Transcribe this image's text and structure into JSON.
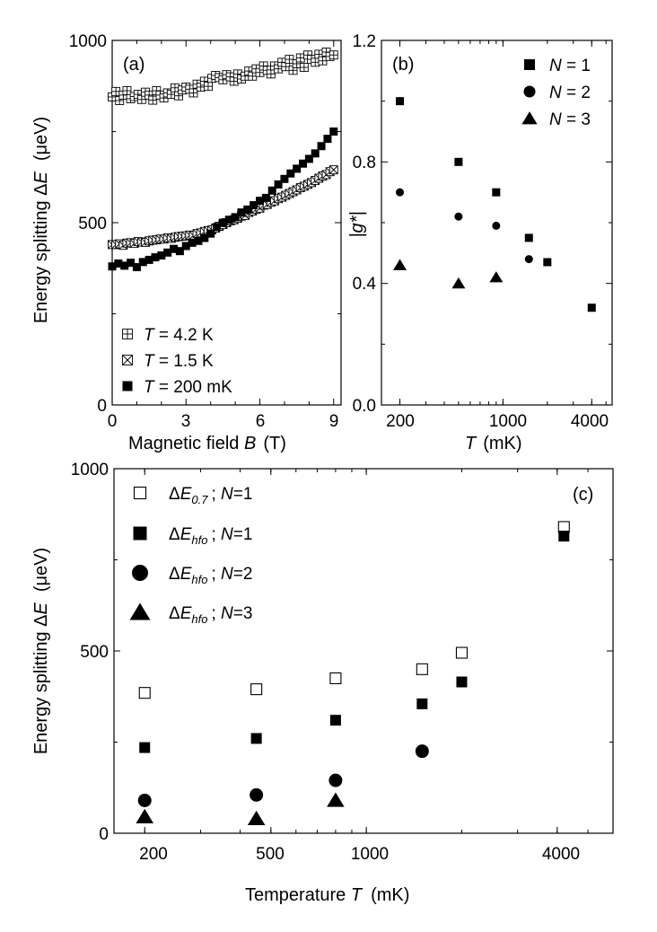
{
  "colors": {
    "ink": "#000000",
    "background": "#ffffff"
  },
  "chart_data": [
    {
      "id": "a",
      "type": "scatter",
      "panel_label": "(a)",
      "xlabel_main": "Magnetic field ",
      "xlabel_var": "B",
      "xlabel_unit": "(T)",
      "ylabel_main": "Energy splitting Δ",
      "ylabel_var": "E",
      "ylabel_unit": "(μeV)",
      "xlim": [
        0,
        9.3
      ],
      "ylim": [
        0,
        1000
      ],
      "xticks": [
        0,
        3,
        6,
        9
      ],
      "xtick_labels": [
        "0",
        "3",
        "6",
        "9"
      ],
      "yticks": [
        0,
        500,
        1000
      ],
      "ytick_labels": [
        "0",
        "500",
        "1000"
      ],
      "series": [
        {
          "name": "T = 4.2 K",
          "var": "T",
          "label": " = 4.2 K",
          "marker": "square-plus",
          "x": [
            0.0,
            0.15,
            0.3,
            0.45,
            0.6,
            0.75,
            0.9,
            1.05,
            1.2,
            1.35,
            1.5,
            1.65,
            1.8,
            1.95,
            2.1,
            2.25,
            2.4,
            2.55,
            2.7,
            2.85,
            3.0,
            3.15,
            3.3,
            3.45,
            3.6,
            3.75,
            3.9,
            4.05,
            4.2,
            4.35,
            4.5,
            4.65,
            4.8,
            4.95,
            5.1,
            5.25,
            5.4,
            5.55,
            5.7,
            5.85,
            6.0,
            6.15,
            6.3,
            6.45,
            6.6,
            6.75,
            6.9,
            7.05,
            7.2,
            7.35,
            7.5,
            7.65,
            7.8,
            7.95,
            8.1,
            8.25,
            8.4,
            8.55,
            8.7,
            8.85,
            9.0
          ],
          "y": [
            845,
            860,
            835,
            850,
            862,
            840,
            846,
            852,
            838,
            858,
            850,
            836,
            862,
            850,
            842,
            856,
            852,
            870,
            848,
            864,
            872,
            866,
            856,
            880,
            872,
            888,
            874,
            896,
            904,
            898,
            892,
            906,
            900,
            888,
            908,
            894,
            902,
            916,
            902,
            922,
            912,
            930,
            918,
            908,
            930,
            922,
            940,
            928,
            948,
            918,
            936,
            952,
            926,
            960,
            948,
            940,
            962,
            944,
            968,
            956,
            960
          ]
        },
        {
          "name": "T = 1.5 K",
          "var": "T",
          "label": " = 1.5 K",
          "marker": "square-x",
          "x": [
            0.0,
            0.15,
            0.3,
            0.45,
            0.6,
            0.75,
            0.9,
            1.05,
            1.2,
            1.35,
            1.5,
            1.65,
            1.8,
            1.95,
            2.1,
            2.25,
            2.4,
            2.55,
            2.7,
            2.85,
            3.0,
            3.15,
            3.3,
            3.45,
            3.6,
            3.75,
            3.9,
            4.05,
            4.2,
            4.35,
            4.5,
            4.65,
            4.8,
            4.95,
            5.1,
            5.25,
            5.4,
            5.55,
            5.7,
            5.85,
            6.0,
            6.15,
            6.3,
            6.45,
            6.6,
            6.75,
            6.9,
            7.05,
            7.2,
            7.35,
            7.5,
            7.65,
            7.8,
            7.95,
            8.1,
            8.25,
            8.4,
            8.55,
            8.7,
            8.85,
            9.0
          ],
          "y": [
            440,
            440,
            442,
            438,
            444,
            445,
            443,
            448,
            447,
            446,
            450,
            452,
            453,
            455,
            455,
            458,
            457,
            460,
            462,
            463,
            464,
            466,
            465,
            470,
            472,
            476,
            478,
            480,
            485,
            490,
            495,
            500,
            505,
            508,
            512,
            518,
            520,
            528,
            532,
            537,
            540,
            548,
            550,
            556,
            560,
            566,
            570,
            575,
            580,
            585,
            590,
            596,
            600,
            605,
            610,
            616,
            622,
            628,
            632,
            640,
            645
          ]
        },
        {
          "name": "T = 200 mK",
          "var": "T",
          "label": " = 200 mK",
          "marker": "square-filled",
          "x": [
            0.0,
            0.25,
            0.5,
            0.75,
            1.0,
            1.25,
            1.5,
            1.75,
            2.0,
            2.25,
            2.5,
            2.75,
            3.0,
            3.25,
            3.5,
            3.75,
            4.0,
            4.25,
            4.5,
            4.75,
            5.0,
            5.25,
            5.5,
            5.75,
            6.0,
            6.25,
            6.5,
            6.75,
            7.0,
            7.25,
            7.5,
            7.75,
            8.0,
            8.25,
            8.5,
            8.75,
            9.0
          ],
          "y": [
            380,
            388,
            382,
            390,
            378,
            392,
            398,
            405,
            410,
            418,
            428,
            422,
            436,
            445,
            450,
            458,
            470,
            488,
            500,
            508,
            515,
            528,
            536,
            548,
            560,
            568,
            588,
            605,
            620,
            635,
            648,
            662,
            675,
            690,
            710,
            730,
            750
          ]
        }
      ]
    },
    {
      "id": "b",
      "type": "scatter",
      "panel_label": "(b)",
      "xlabel_var": "T",
      "xlabel_unit": "(mK)",
      "ylabel_main": "|g*|",
      "xscale": "log",
      "xlim": [
        150,
        5500
      ],
      "ylim": [
        0,
        1.2
      ],
      "xticks": [
        200,
        1000,
        4000
      ],
      "xtick_labels": [
        "200",
        "1000",
        "4000"
      ],
      "yticks": [
        0,
        0.4,
        0.8,
        1.2
      ],
      "ytick_labels": [
        "0.0",
        "0.4",
        "0.8",
        "1.2"
      ],
      "series": [
        {
          "name": "N = 1",
          "var": "N",
          "label": " = 1",
          "marker": "square-filled",
          "x": [
            200,
            500,
            900,
            1500,
            2000,
            4000
          ],
          "y": [
            1.0,
            0.8,
            0.7,
            0.55,
            0.47,
            0.32
          ]
        },
        {
          "name": "N = 2",
          "var": "N",
          "label": " = 2",
          "marker": "circle-filled",
          "x": [
            200,
            500,
            900,
            1500
          ],
          "y": [
            0.7,
            0.62,
            0.59,
            0.48
          ]
        },
        {
          "name": "N = 3",
          "var": "N",
          "label": " = 3",
          "marker": "triangle-filled",
          "x": [
            200,
            500,
            900
          ],
          "y": [
            0.46,
            0.4,
            0.42
          ]
        }
      ]
    },
    {
      "id": "c",
      "type": "scatter",
      "panel_label": "(c)",
      "xlabel_main": "Temperature ",
      "xlabel_var": "T",
      "xlabel_unit": "(mK)",
      "ylabel_main": "Energy splitting Δ",
      "ylabel_var": "E",
      "ylabel_unit": "(μeV)",
      "xscale": "log",
      "xlim": [
        160,
        6000
      ],
      "ylim": [
        0,
        1000
      ],
      "xticks": [
        200,
        500,
        1000,
        4000
      ],
      "xtick_labels": [
        "200",
        "500",
        "1000",
        "4000"
      ],
      "yticks": [
        0,
        500,
        1000
      ],
      "ytick_labels": [
        "0",
        "500",
        "1000"
      ],
      "series": [
        {
          "name": "ΔE0.7 ; N=1",
          "main": "Δ",
          "var": "E",
          "sub": "0.7",
          "sep": "; ",
          "nvar": "N",
          "nval": "=1",
          "marker": "square-open",
          "x": [
            200,
            450,
            800,
            1500,
            2000,
            4200
          ],
          "y": [
            385,
            395,
            425,
            450,
            495,
            840
          ]
        },
        {
          "name": "ΔEhfo ; N=1",
          "main": "Δ",
          "var": "E",
          "sub": "hfo",
          "sep": "; ",
          "nvar": "N",
          "nval": "=1",
          "marker": "square-filled",
          "x": [
            200,
            450,
            800,
            1500,
            2000,
            4200
          ],
          "y": [
            235,
            260,
            310,
            355,
            415,
            815
          ]
        },
        {
          "name": "ΔEhfo ; N=2",
          "main": "Δ",
          "var": "E",
          "sub": "hfo",
          "sep": "; ",
          "nvar": "N",
          "nval": "=2",
          "marker": "circle-filled",
          "x": [
            200,
            450,
            800,
            1500
          ],
          "y": [
            90,
            105,
            145,
            225
          ]
        },
        {
          "name": "ΔEhfo ; N=3",
          "main": "Δ",
          "var": "E",
          "sub": "hfo",
          "sep": "; ",
          "nvar": "N",
          "nval": "=3",
          "marker": "triangle-filled",
          "x": [
            200,
            450,
            800
          ],
          "y": [
            45,
            40,
            90
          ]
        }
      ]
    }
  ]
}
